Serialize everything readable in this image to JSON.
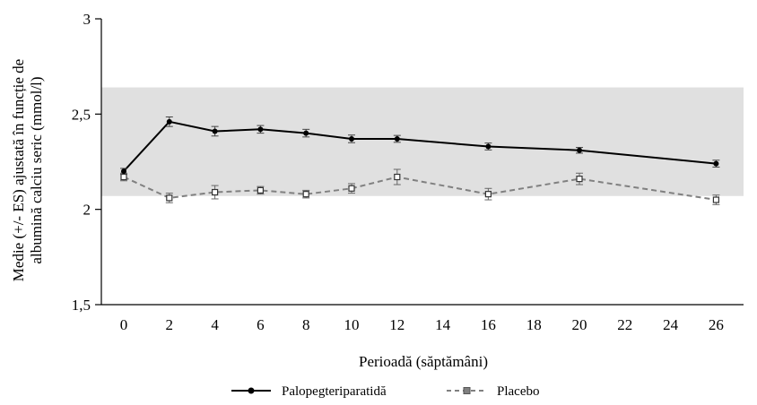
{
  "chart_data": {
    "type": "line",
    "xlabel": "Perioadă (săptămâni)",
    "ylabel_lines": [
      "Medie (+/- ES) ajustată în funcție de",
      "albumină calciu seric (mmol/l)"
    ],
    "x_ticks": [
      0,
      2,
      4,
      6,
      8,
      10,
      12,
      14,
      16,
      18,
      20,
      22,
      24,
      26
    ],
    "y_ticks": [
      1.5,
      2,
      2.5,
      3
    ],
    "y_tick_labels": [
      "1,5",
      "2",
      "2,5",
      "3"
    ],
    "ylim": [
      1.5,
      3
    ],
    "xlim": [
      -1,
      30
    ],
    "reference_band": {
      "low": 2.07,
      "high": 2.64,
      "color": "#e0e0e0"
    },
    "series": [
      {
        "name": "Palopegteriparatidă",
        "color": "#000000",
        "dash": "",
        "marker": "circle",
        "x": [
          0,
          2,
          4,
          6,
          8,
          10,
          12,
          16,
          20,
          26
        ],
        "y": [
          2.2,
          2.46,
          2.41,
          2.42,
          2.4,
          2.37,
          2.37,
          2.33,
          2.31,
          2.24
        ],
        "err": [
          0.015,
          0.025,
          0.025,
          0.02,
          0.02,
          0.02,
          0.018,
          0.018,
          0.015,
          0.018
        ]
      },
      {
        "name": "Placebo",
        "color": "#808080",
        "dash": "6,4",
        "marker": "square",
        "x": [
          0,
          2,
          4,
          6,
          8,
          10,
          12,
          16,
          20,
          26
        ],
        "y": [
          2.17,
          2.06,
          2.09,
          2.1,
          2.08,
          2.11,
          2.17,
          2.08,
          2.16,
          2.05
        ],
        "err": [
          0.02,
          0.025,
          0.035,
          0.02,
          0.02,
          0.025,
          0.04,
          0.03,
          0.03,
          0.025
        ]
      }
    ]
  }
}
